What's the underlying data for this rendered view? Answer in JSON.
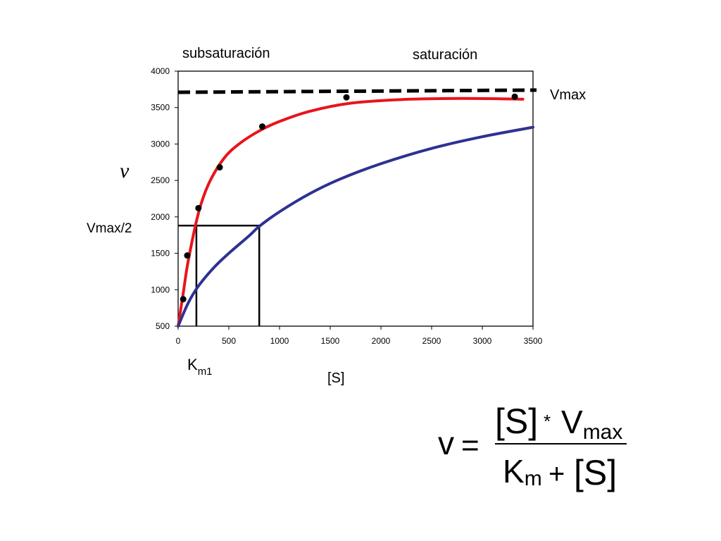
{
  "chart_data": {
    "type": "scatter",
    "x": {
      "ticks": [
        0,
        500,
        1000,
        1500,
        2000,
        2500,
        3000,
        3500
      ],
      "range": [
        0,
        3500
      ]
    },
    "y": {
      "ticks": [
        500,
        1000,
        1500,
        2000,
        2500,
        3000,
        3500,
        4000
      ],
      "range": [
        500,
        4000
      ]
    },
    "xlabel": "[S]",
    "ylabel": "ν",
    "region_labels": {
      "left": "subsaturación",
      "right": "saturación"
    },
    "points": [
      {
        "x": 50,
        "y": 870
      },
      {
        "x": 90,
        "y": 1470
      },
      {
        "x": 200,
        "y": 2120
      },
      {
        "x": 410,
        "y": 2680
      },
      {
        "x": 830,
        "y": 3240
      },
      {
        "x": 1660,
        "y": 3640
      },
      {
        "x": 3320,
        "y": 3650
      }
    ],
    "series": [
      {
        "color": "#e8141b",
        "values": [
          [
            0,
            500
          ],
          [
            50,
            950
          ],
          [
            100,
            1400
          ],
          [
            200,
            2050
          ],
          [
            300,
            2450
          ],
          [
            450,
            2800
          ],
          [
            600,
            3000
          ],
          [
            800,
            3180
          ],
          [
            1000,
            3310
          ],
          [
            1300,
            3450
          ],
          [
            1700,
            3560
          ],
          [
            2200,
            3610
          ],
          [
            2800,
            3625
          ],
          [
            3400,
            3615
          ]
        ]
      },
      {
        "color": "#2e3192",
        "values": [
          [
            0,
            500
          ],
          [
            100,
            820
          ],
          [
            200,
            1050
          ],
          [
            350,
            1300
          ],
          [
            500,
            1500
          ],
          [
            700,
            1740
          ],
          [
            800,
            1870
          ],
          [
            1000,
            2070
          ],
          [
            1300,
            2320
          ],
          [
            1600,
            2520
          ],
          [
            2000,
            2730
          ],
          [
            2500,
            2940
          ],
          [
            3000,
            3100
          ],
          [
            3500,
            3230
          ]
        ]
      }
    ],
    "vmax_line": {
      "label": "Vmax",
      "y_start": 3710,
      "y_end": 3740
    },
    "half_vmax": {
      "label": "Vmax/2",
      "y": 1880,
      "km_red": 180,
      "km_blue": 800
    },
    "km_label": {
      "base": "K",
      "sub": "m1"
    },
    "grid": false
  },
  "formula": {
    "lhs": "v",
    "equals": "=",
    "num_s": "[S]",
    "times": "*",
    "vmax_base": "V",
    "vmax_sub": "max",
    "den_k_base": "K",
    "den_k_sub": "m",
    "plus": "+",
    "den_s": "[S]"
  }
}
